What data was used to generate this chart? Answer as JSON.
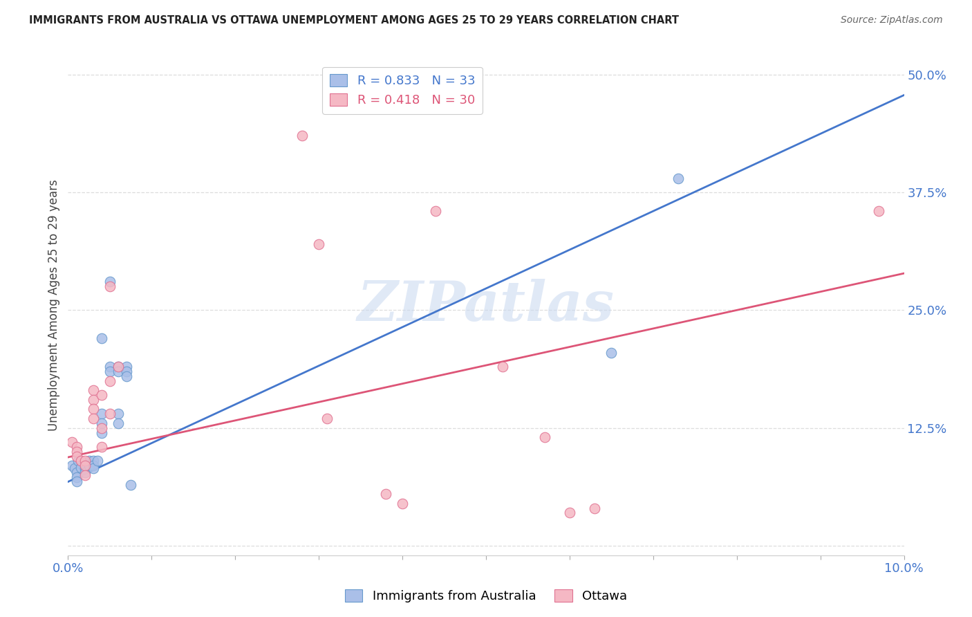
{
  "title": "IMMIGRANTS FROM AUSTRALIA VS OTTAWA UNEMPLOYMENT AMONG AGES 25 TO 29 YEARS CORRELATION CHART",
  "source": "Source: ZipAtlas.com",
  "ylabel": "Unemployment Among Ages 25 to 29 years",
  "watermark": "ZIPatlas",
  "xlim": [
    0.0,
    0.1
  ],
  "ylim": [
    -0.01,
    0.52
  ],
  "yticks": [
    0.0,
    0.125,
    0.25,
    0.375,
    0.5
  ],
  "ytick_labels": [
    "",
    "12.5%",
    "25.0%",
    "37.5%",
    "50.0%"
  ],
  "xticks": [
    0.0,
    0.01,
    0.02,
    0.03,
    0.04,
    0.05,
    0.06,
    0.07,
    0.08,
    0.09,
    0.1
  ],
  "xtick_labels": [
    "0.0%",
    "",
    "",
    "",
    "",
    "",
    "",
    "",
    "",
    "",
    "10.0%"
  ],
  "blue_R": 0.833,
  "blue_N": 33,
  "pink_R": 0.418,
  "pink_N": 30,
  "blue_fill_color": "#aabfe8",
  "pink_fill_color": "#f5b8c4",
  "blue_edge_color": "#6699cc",
  "pink_edge_color": "#e07090",
  "blue_line_color": "#4477cc",
  "pink_line_color": "#dd5577",
  "tick_label_color": "#4477cc",
  "title_color": "#222222",
  "source_color": "#666666",
  "ylabel_color": "#444444",
  "blue_intercept": 0.068,
  "blue_slope": 4.1,
  "pink_intercept": 0.094,
  "pink_slope": 1.95,
  "blue_scatter": [
    [
      0.0005,
      0.085
    ],
    [
      0.0008,
      0.082
    ],
    [
      0.001,
      0.078
    ],
    [
      0.001,
      0.073
    ],
    [
      0.001,
      0.068
    ],
    [
      0.0012,
      0.09
    ],
    [
      0.0015,
      0.083
    ],
    [
      0.002,
      0.088
    ],
    [
      0.002,
      0.082
    ],
    [
      0.002,
      0.078
    ],
    [
      0.0025,
      0.09
    ],
    [
      0.0025,
      0.085
    ],
    [
      0.003,
      0.09
    ],
    [
      0.003,
      0.085
    ],
    [
      0.003,
      0.082
    ],
    [
      0.0035,
      0.09
    ],
    [
      0.004,
      0.22
    ],
    [
      0.004,
      0.14
    ],
    [
      0.004,
      0.13
    ],
    [
      0.004,
      0.12
    ],
    [
      0.005,
      0.28
    ],
    [
      0.005,
      0.19
    ],
    [
      0.005,
      0.185
    ],
    [
      0.006,
      0.19
    ],
    [
      0.006,
      0.185
    ],
    [
      0.006,
      0.14
    ],
    [
      0.006,
      0.13
    ],
    [
      0.007,
      0.19
    ],
    [
      0.007,
      0.185
    ],
    [
      0.007,
      0.18
    ],
    [
      0.0075,
      0.065
    ],
    [
      0.065,
      0.205
    ],
    [
      0.073,
      0.39
    ]
  ],
  "pink_scatter": [
    [
      0.0005,
      0.11
    ],
    [
      0.001,
      0.105
    ],
    [
      0.001,
      0.1
    ],
    [
      0.001,
      0.095
    ],
    [
      0.0015,
      0.09
    ],
    [
      0.002,
      0.09
    ],
    [
      0.002,
      0.085
    ],
    [
      0.002,
      0.075
    ],
    [
      0.003,
      0.165
    ],
    [
      0.003,
      0.155
    ],
    [
      0.003,
      0.145
    ],
    [
      0.003,
      0.135
    ],
    [
      0.004,
      0.16
    ],
    [
      0.004,
      0.125
    ],
    [
      0.004,
      0.105
    ],
    [
      0.005,
      0.275
    ],
    [
      0.005,
      0.175
    ],
    [
      0.005,
      0.14
    ],
    [
      0.006,
      0.19
    ],
    [
      0.028,
      0.435
    ],
    [
      0.03,
      0.32
    ],
    [
      0.031,
      0.135
    ],
    [
      0.038,
      0.055
    ],
    [
      0.04,
      0.045
    ],
    [
      0.044,
      0.355
    ],
    [
      0.052,
      0.19
    ],
    [
      0.057,
      0.115
    ],
    [
      0.06,
      0.035
    ],
    [
      0.063,
      0.04
    ],
    [
      0.097,
      0.355
    ]
  ]
}
